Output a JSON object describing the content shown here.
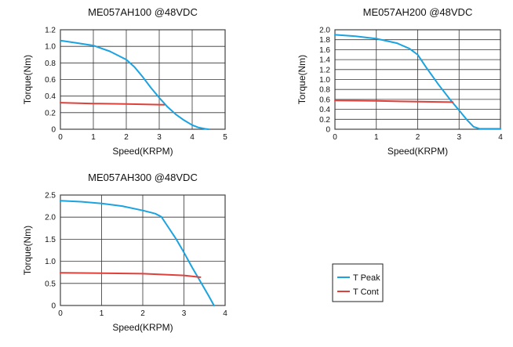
{
  "chart_data": [
    {
      "type": "line",
      "title": "ME057AH100 @48VDC",
      "xlabel": "Speed(KRPM)",
      "ylabel": "Torque(Nm)",
      "xlim": [
        0,
        5
      ],
      "ylim": [
        0,
        1.2
      ],
      "xticks": [
        "0",
        "1",
        "2",
        "3",
        "4",
        "5"
      ],
      "yticks": [
        "0",
        "0.2",
        "0.4",
        "0.6",
        "0.8",
        "1.0",
        "1.2"
      ],
      "grid": true,
      "series": [
        {
          "name": "T Peak",
          "color": "#1aa3e0",
          "x": [
            0,
            0.5,
            1.0,
            1.5,
            2.0,
            2.25,
            2.5,
            2.75,
            3.0,
            3.25,
            3.5,
            3.75,
            4.0,
            4.2,
            4.4,
            4.5
          ],
          "y": [
            1.07,
            1.04,
            1.01,
            0.94,
            0.84,
            0.75,
            0.63,
            0.5,
            0.38,
            0.27,
            0.18,
            0.11,
            0.05,
            0.02,
            0.005,
            0.0
          ]
        },
        {
          "name": "T Cont",
          "color": "#e0403a",
          "x": [
            0,
            1,
            2,
            3.15
          ],
          "y": [
            0.32,
            0.31,
            0.305,
            0.295
          ]
        }
      ]
    },
    {
      "type": "line",
      "title": "ME057AH200 @48VDC",
      "xlabel": "Speed(KRPM)",
      "ylabel": "Torque(Nm)",
      "xlim": [
        0,
        4
      ],
      "ylim": [
        0,
        2.0
      ],
      "xticks": [
        "0",
        "1",
        "2",
        "3",
        "4"
      ],
      "yticks": [
        "0",
        "0.2",
        "0.4",
        "0.6",
        "0.8",
        "1.0",
        "1.2",
        "1.4",
        "1.6",
        "1.8",
        "2.0"
      ],
      "grid": true,
      "series": [
        {
          "name": "T Peak",
          "color": "#1aa3e0",
          "x": [
            0,
            0.5,
            1.0,
            1.5,
            1.8,
            2.0,
            2.2,
            2.5,
            2.8,
            3.0,
            3.2,
            3.35,
            3.5,
            4.0
          ],
          "y": [
            1.9,
            1.87,
            1.82,
            1.73,
            1.62,
            1.5,
            1.25,
            0.9,
            0.58,
            0.38,
            0.18,
            0.05,
            0.01,
            0.01
          ]
        },
        {
          "name": "T Cont",
          "color": "#e0403a",
          "x": [
            0,
            1,
            2,
            2.85
          ],
          "y": [
            0.58,
            0.57,
            0.555,
            0.545
          ]
        }
      ]
    },
    {
      "type": "line",
      "title": "ME057AH300 @48VDC",
      "xlabel": "Speed(KRPM)",
      "ylabel": "Torque(Nm)",
      "xlim": [
        0,
        4
      ],
      "ylim": [
        0,
        2.5
      ],
      "xticks": [
        "0",
        "1",
        "2",
        "3",
        "4"
      ],
      "yticks": [
        "0",
        "0.5",
        "1.0",
        "1.5",
        "2.0",
        "2.5"
      ],
      "grid": true,
      "series": [
        {
          "name": "T Peak",
          "color": "#1aa3e0",
          "x": [
            0,
            0.5,
            1.0,
            1.5,
            2.0,
            2.3,
            2.45,
            2.6,
            2.8,
            3.0,
            3.2,
            3.4,
            3.6,
            3.73
          ],
          "y": [
            2.37,
            2.35,
            2.31,
            2.25,
            2.15,
            2.08,
            2.01,
            1.8,
            1.52,
            1.2,
            0.86,
            0.54,
            0.22,
            0.0
          ]
        },
        {
          "name": "T Cont",
          "color": "#e0403a",
          "x": [
            0,
            1,
            2,
            3,
            3.4
          ],
          "y": [
            0.74,
            0.73,
            0.72,
            0.68,
            0.64
          ]
        }
      ]
    }
  ],
  "legend": {
    "items": [
      {
        "label": "T Peak",
        "color": "#1aa3e0"
      },
      {
        "label": "T Cont",
        "color": "#e0403a"
      }
    ]
  }
}
